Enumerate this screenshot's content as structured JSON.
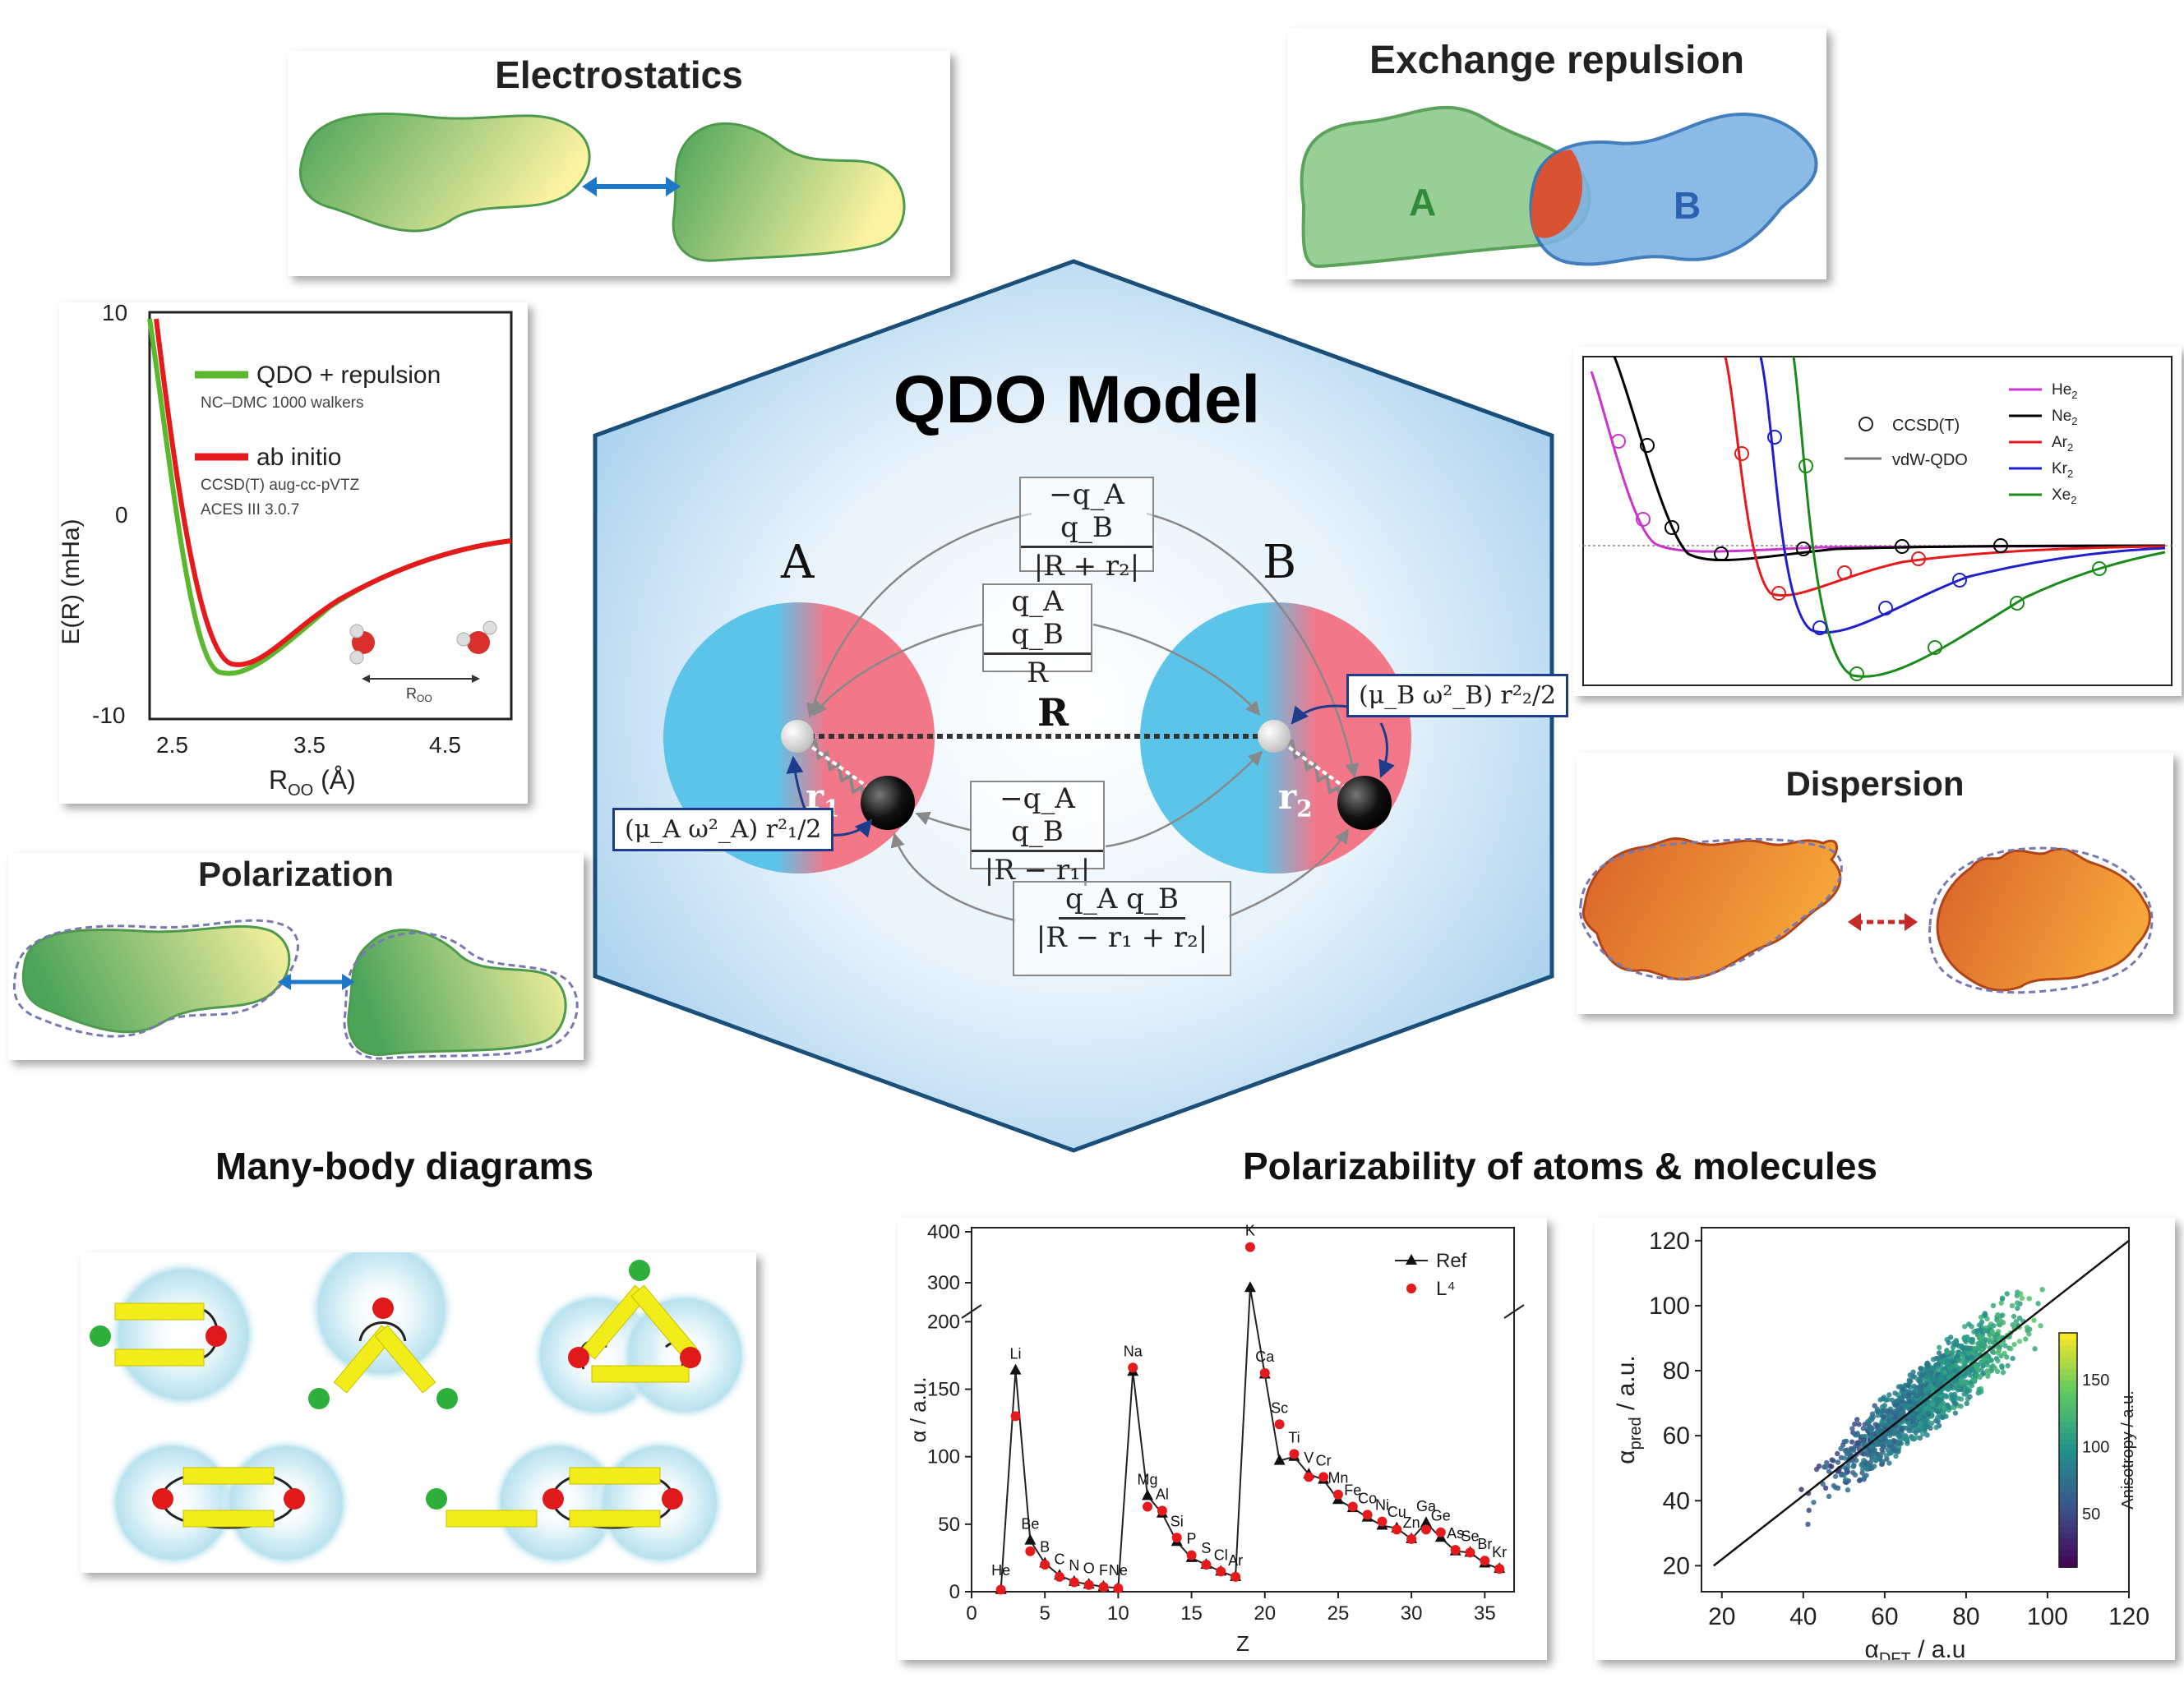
{
  "center": {
    "title": "QDO Model",
    "label_a": "A",
    "label_b": "B",
    "label_r": "R",
    "label_r1": "r",
    "label_r1_sub": "1",
    "label_r2": "r",
    "label_r2_sub": "2",
    "frac_top_num": "−q_A q_B",
    "frac_top_den": "|R + r₂|",
    "frac_mid_num": "q_A q_B",
    "frac_mid_den": "R",
    "frac_low_num": "−q_A q_B",
    "frac_low_den": "|R − r₁|",
    "frac_bottom_num": "q_A q_B",
    "frac_bottom_den": "|R − r₁ + r₂|",
    "spring_a": "(μ_A ω²_A) r²₁/2",
    "spring_b": "(μ_B ω²_B) r²₂/2"
  },
  "panels": {
    "electrostatics": {
      "title": "Electrostatics"
    },
    "exchange": {
      "title": "Exchange repulsion",
      "label_a": "A",
      "label_b": "B"
    },
    "polarization": {
      "title": "Polarization"
    },
    "dispersion": {
      "title": "Dispersion"
    }
  },
  "headings": {
    "many_body": "Many-body diagrams",
    "polarizability": "Polarizability of atoms & molecules"
  },
  "water_plot": {
    "legend1": "QDO + repulsion",
    "legend1_sub": "NC–DMC 1000 walkers",
    "legend2": "ab initio",
    "legend2_sub1": "CCSD(T) aug-cc-pVTZ",
    "legend2_sub2": "ACES III 3.0.7",
    "ylabel": "E(R) (mHa)",
    "xlabel": "R",
    "xlabel_sub": "OO",
    "xlabel_unit": " (Å)",
    "roo_label": "R",
    "roo_sub": "OO",
    "yticks": [
      "10",
      "0",
      "-10"
    ],
    "xticks": [
      "2.5",
      "3.5",
      "4.5"
    ],
    "colors": {
      "qdo": "#5bb82e",
      "ab_initio": "#e41a1c"
    }
  },
  "dimer_plot": {
    "legend_markers": "CCSD(T)",
    "legend_line": "vdW-QDO",
    "series": [
      {
        "name": "He",
        "sub": "2",
        "color": "#cc33cc"
      },
      {
        "name": "Ne",
        "sub": "2",
        "color": "#000000"
      },
      {
        "name": "Ar",
        "sub": "2",
        "color": "#e41a1c"
      },
      {
        "name": "Kr",
        "sub": "2",
        "color": "#1f1fcc"
      },
      {
        "name": "Xe",
        "sub": "2",
        "color": "#1a8a1a"
      }
    ]
  },
  "chart_data": [
    {
      "type": "line",
      "xlabel": "Z",
      "ylabel": "α / a.u.",
      "xlim": [
        0,
        37
      ],
      "yticks": [
        "0",
        "50",
        "100",
        "150",
        "200",
        "300",
        "400"
      ],
      "xticks": [
        "0",
        "5",
        "10",
        "15",
        "20",
        "25",
        "30",
        "35"
      ],
      "legend": [
        "Ref",
        "L⁴"
      ],
      "elements": [
        "He",
        "Li",
        "Be",
        "B",
        "C",
        "N",
        "O",
        "F",
        "Ne",
        "Na",
        "Mg",
        "Al",
        "Si",
        "P",
        "S",
        "Cl",
        "Ar",
        "K",
        "Ca",
        "Sc",
        "Ti",
        "V",
        "Cr",
        "Mn",
        "Fe",
        "Co",
        "Ni",
        "Cu",
        "Zn",
        "Ga",
        "Ge",
        "As",
        "Se",
        "Br",
        "Kr"
      ],
      "x": [
        2,
        3,
        4,
        5,
        6,
        7,
        8,
        9,
        10,
        11,
        12,
        13,
        14,
        15,
        16,
        17,
        18,
        19,
        20,
        21,
        22,
        23,
        24,
        25,
        26,
        27,
        28,
        29,
        30,
        31,
        32,
        33,
        34,
        35,
        36
      ],
      "series": [
        {
          "name": "Ref",
          "values": [
            1.4,
            164,
            38,
            21,
            12,
            7.4,
            5.3,
            3.7,
            2.7,
            163,
            71,
            58,
            37,
            25,
            20,
            15,
            11,
            290,
            161,
            97,
            100,
            87,
            83,
            68,
            62,
            55,
            49,
            47,
            39,
            51,
            40,
            30,
            29,
            21,
            17
          ]
        },
        {
          "name": "L⁴",
          "values": [
            1.5,
            130,
            30,
            20,
            11,
            7,
            5,
            3.5,
            2.5,
            166,
            63,
            60,
            40,
            27,
            20,
            15,
            11,
            370,
            162,
            124,
            102,
            85,
            85,
            72,
            63,
            57,
            52,
            46,
            39,
            46,
            44,
            31,
            29,
            23,
            17
          ]
        }
      ]
    },
    {
      "type": "scatter",
      "xlabel": "α",
      "xlabel_sub": "DFT",
      "xlabel_unit": " / a.u",
      "ylabel": "α",
      "ylabel_sub": "pred",
      "ylabel_unit": " / a.u.",
      "xlim": [
        15,
        120
      ],
      "ylim": [
        12,
        124
      ],
      "xticks": [
        "20",
        "40",
        "60",
        "80",
        "100",
        "120"
      ],
      "yticks": [
        "20",
        "40",
        "60",
        "80",
        "100",
        "120"
      ],
      "colorbar_label": "Anisotropy / a.u.",
      "colorbar_ticks": [
        "50",
        "100",
        "150"
      ],
      "reference_line": [
        [
          18,
          20
        ],
        [
          120,
          120
        ]
      ]
    }
  ]
}
